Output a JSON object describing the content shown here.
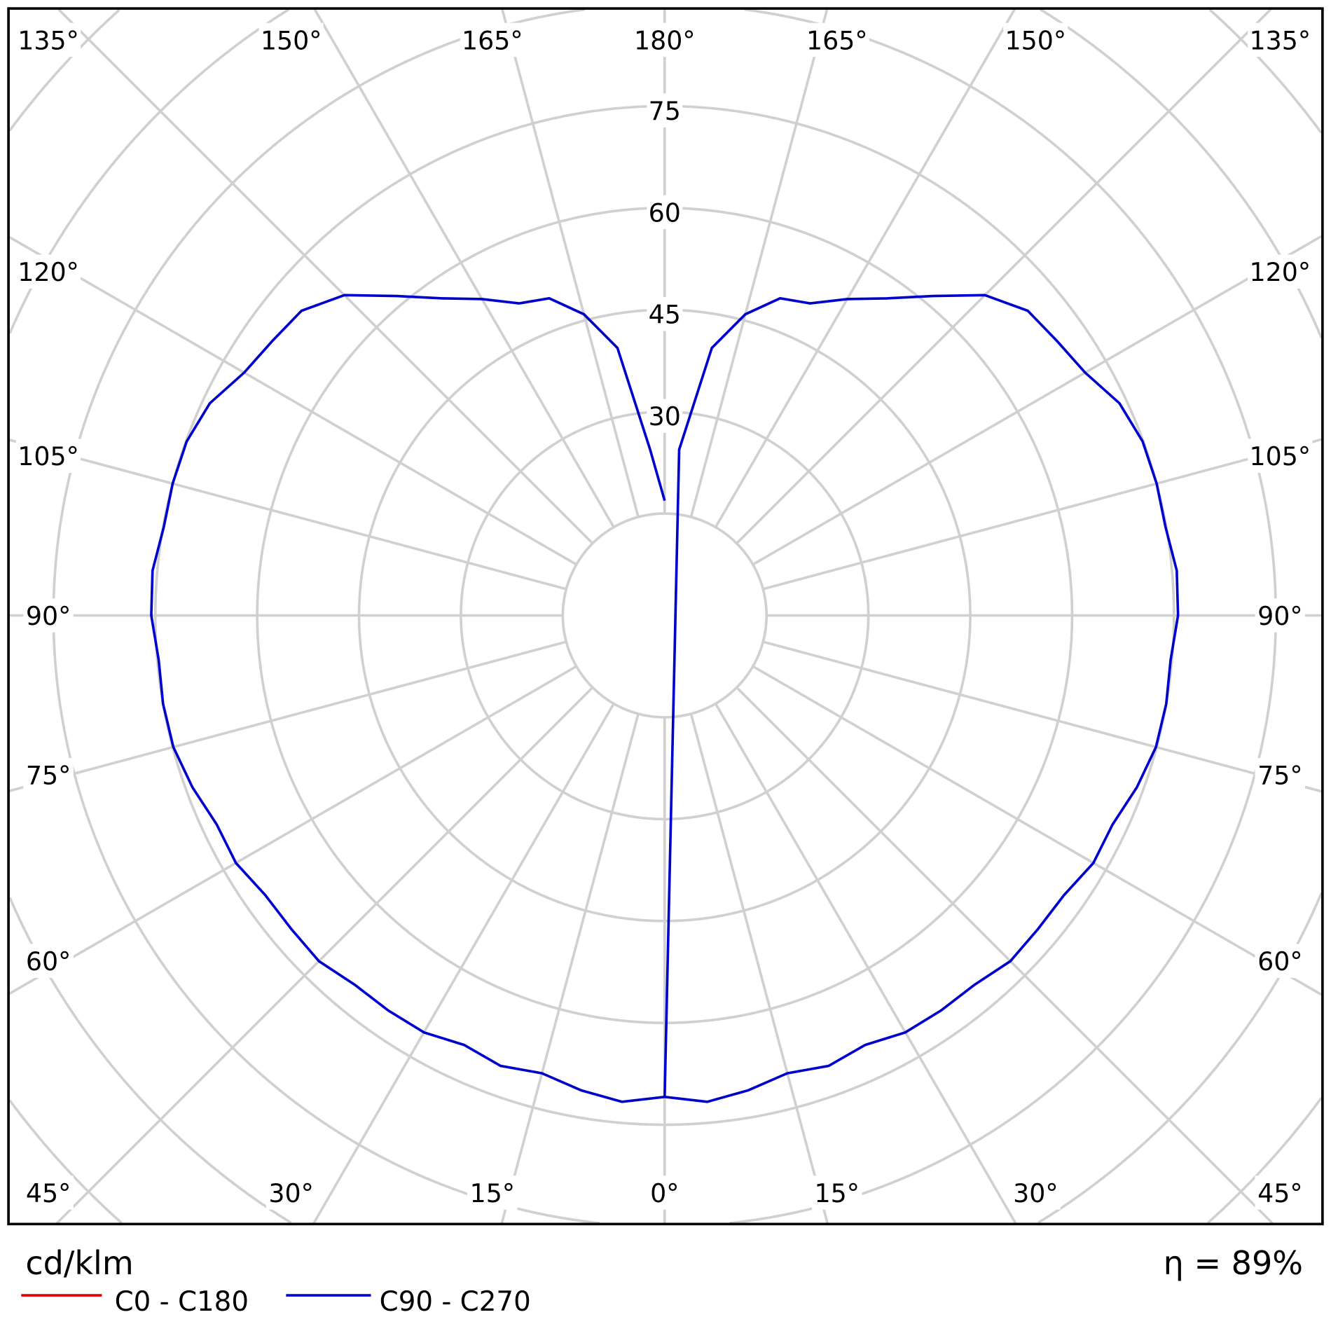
{
  "chart_data": {
    "type": "polar-line",
    "unit_label": "cd/klm",
    "efficiency_label": "η = 89%",
    "radial_ticks": [
      30,
      45,
      60,
      75
    ],
    "radial_rings": [
      15,
      30,
      45,
      60,
      75,
      90,
      105,
      120,
      135
    ],
    "angle_labels_top": [
      "135°",
      "150°",
      "165°",
      "180°",
      "165°",
      "150°",
      "135°"
    ],
    "angle_labels_bottom": [
      "45°",
      "30°",
      "15°",
      "0°",
      "15°",
      "30°",
      "45°"
    ],
    "angle_labels_side": [
      "120°",
      "105°",
      "90°",
      "75°",
      "60°"
    ],
    "grid": true,
    "legend_placement": "bottom-left",
    "series": [
      {
        "name": "C0 - C180",
        "color": "#e00000",
        "gamma": [],
        "values": []
      },
      {
        "name": "C90 - C270",
        "color": "#0000cc",
        "gamma": [
          0,
          5,
          10,
          15,
          20,
          25,
          30,
          35,
          40,
          45,
          50,
          55,
          60,
          65,
          70,
          75,
          80,
          85,
          90,
          95,
          100,
          105,
          110,
          115,
          120,
          125,
          130,
          135,
          140,
          145,
          150,
          155,
          160,
          165,
          170,
          175,
          180
        ],
        "values": [
          70.9,
          71.9,
          71,
          69.8,
          70.6,
          69.8,
          70.9,
          71,
          71,
          72,
          71.8,
          71.8,
          72.9,
          72.8,
          74,
          74.9,
          75,
          74.8,
          75.6,
          75.7,
          74.9,
          75,
          74.9,
          73.9,
          71.5,
          70.5,
          69.8,
          66.7,
          61.4,
          57,
          53.8,
          50.7,
          49.7,
          45.9,
          40,
          24.5,
          16.9
        ],
        "symmetric": true
      }
    ]
  }
}
